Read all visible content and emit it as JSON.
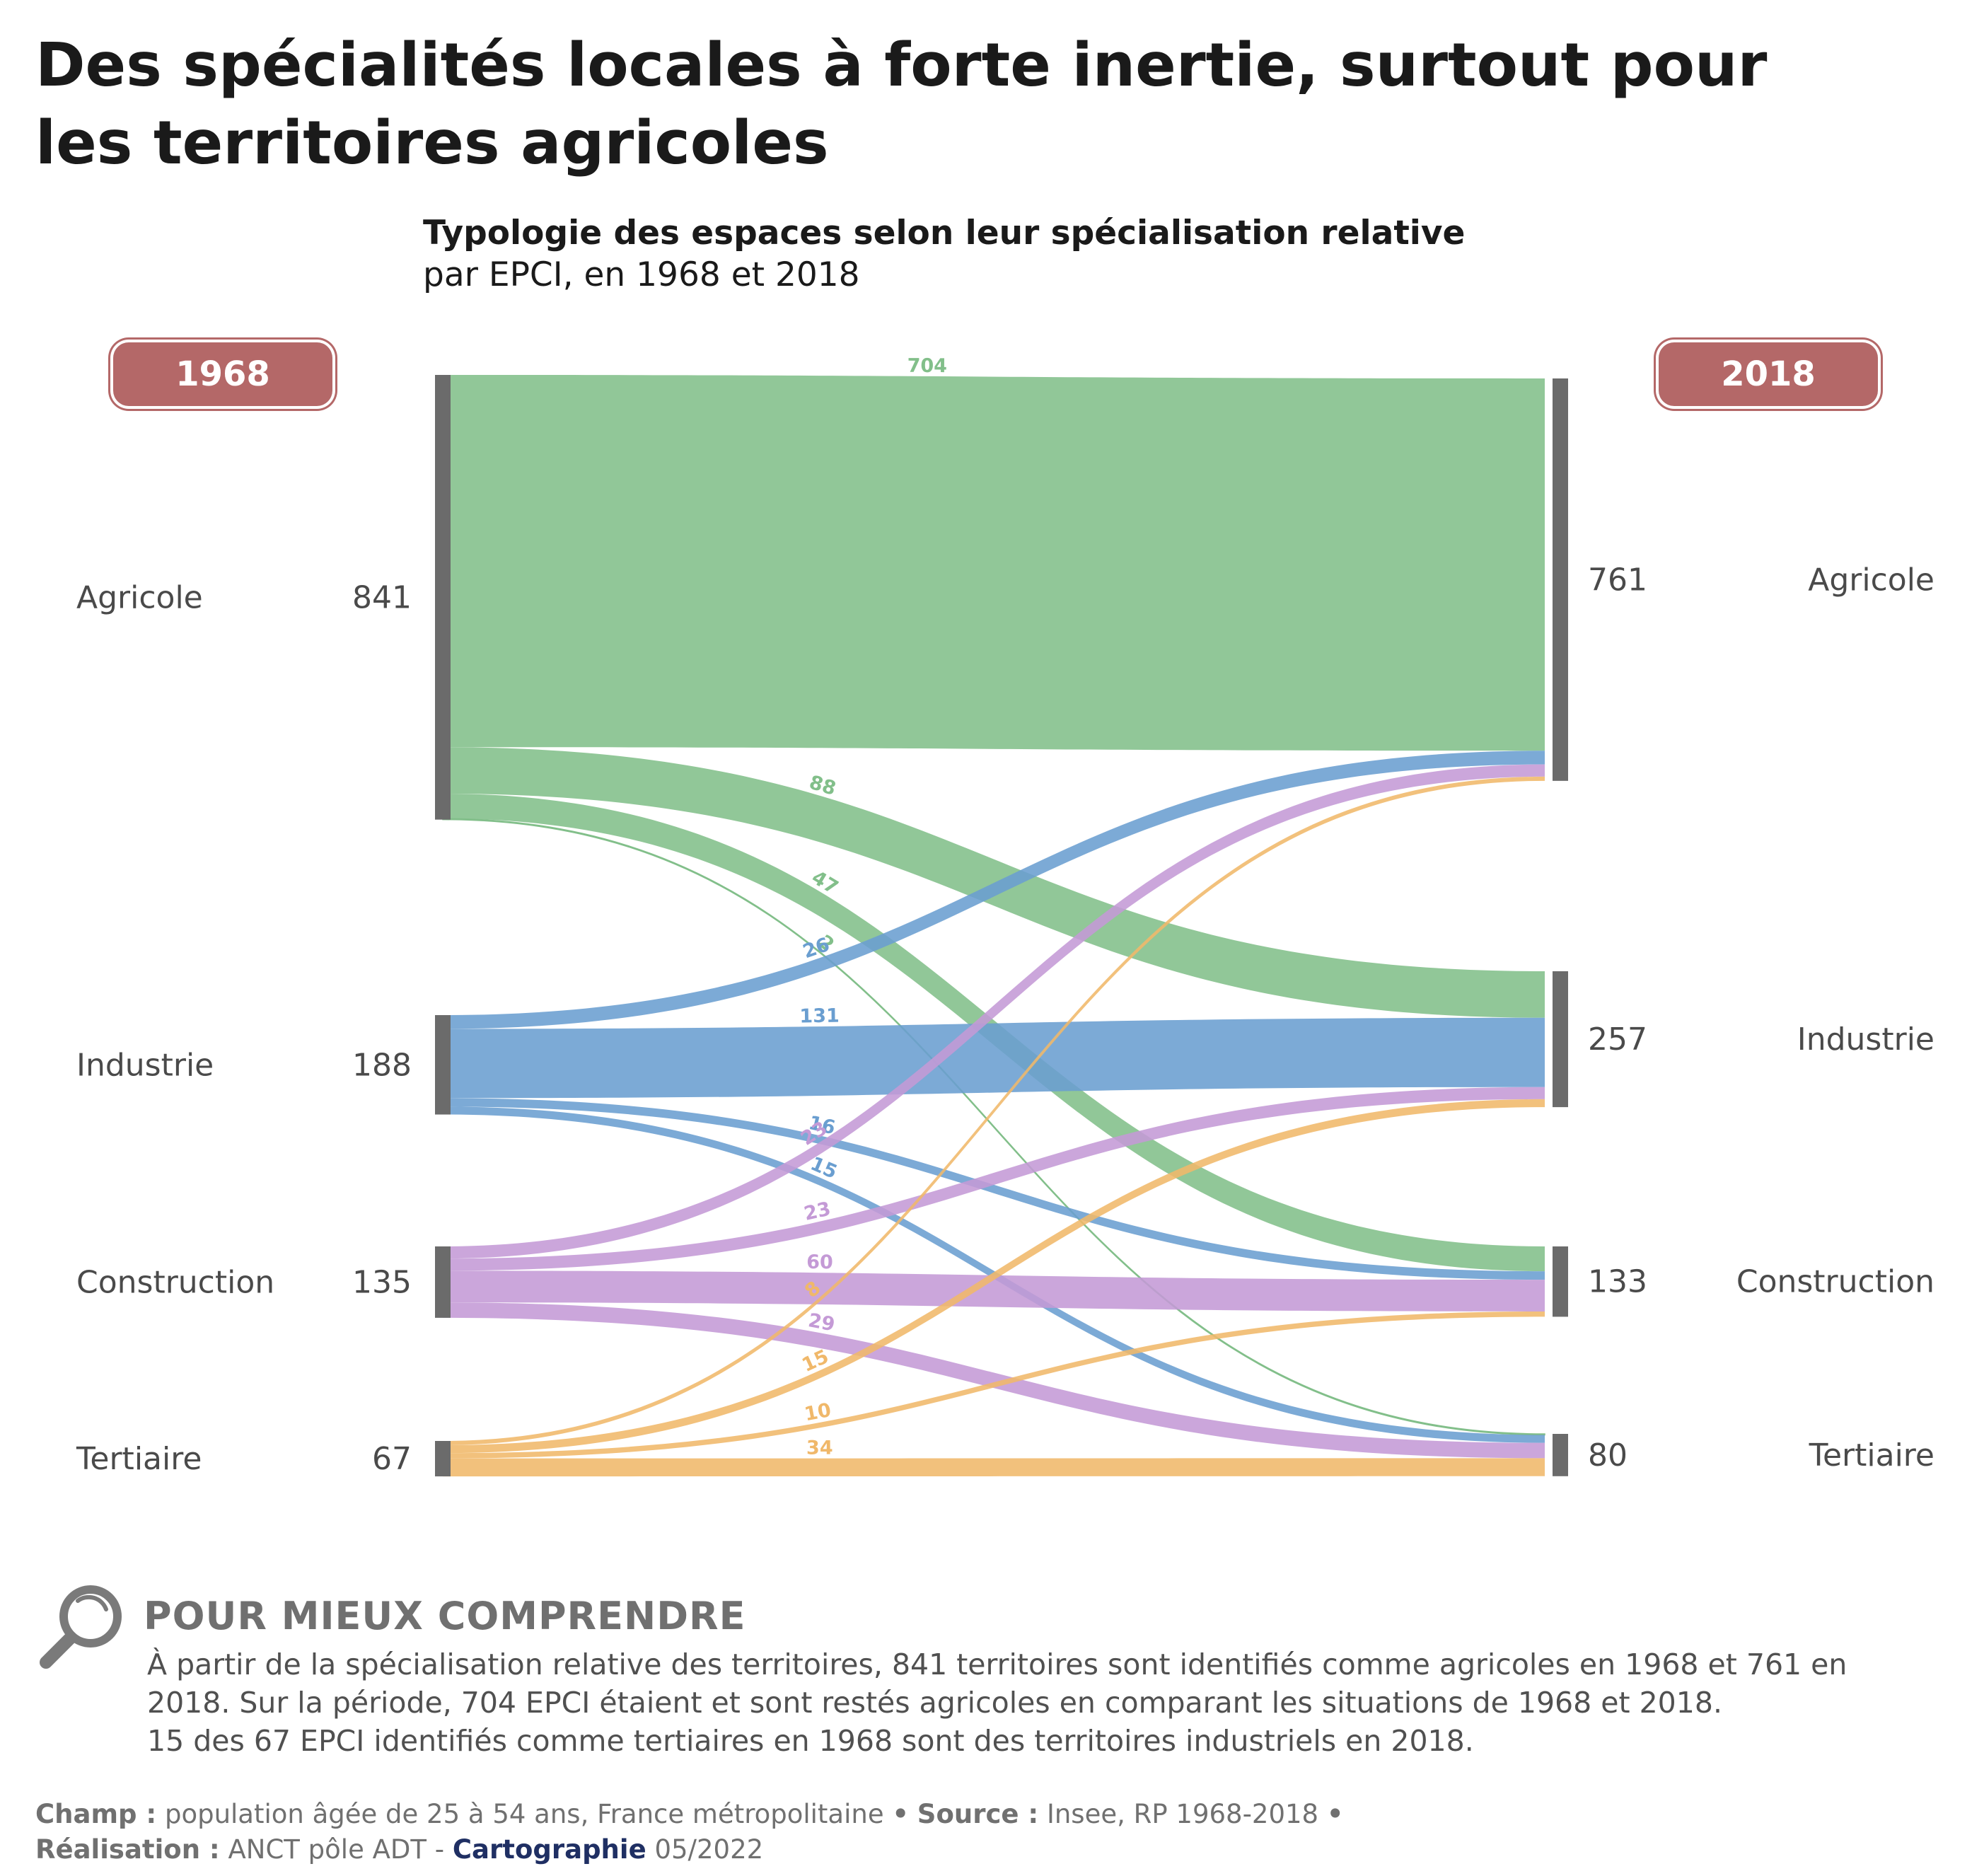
{
  "title": "Des spécialités locales à forte inertie, surtout pour les territoires agricoles",
  "subtitle_bold": "Typologie des espaces selon leur spécialisation relative",
  "subtitle_rest": "par EPCI, en 1968 et 2018",
  "years": {
    "left": "1968",
    "right": "2018"
  },
  "colors": {
    "Agricole": "#82bf8a",
    "Industrie": "#6a9ed0",
    "Construction": "#c49ad6",
    "Tertiaire": "#f0b86a",
    "node": "#6b6b6b",
    "badge": "#b46868"
  },
  "chart_data": {
    "type": "sankey",
    "source_nodes": [
      {
        "name": "Agricole",
        "value": 841
      },
      {
        "name": "Industrie",
        "value": 188
      },
      {
        "name": "Construction",
        "value": 135
      },
      {
        "name": "Tertiaire",
        "value": 67
      }
    ],
    "target_nodes": [
      {
        "name": "Agricole",
        "value": 761
      },
      {
        "name": "Industrie",
        "value": 257
      },
      {
        "name": "Construction",
        "value": 133
      },
      {
        "name": "Tertiaire",
        "value": 80
      }
    ],
    "links": [
      {
        "source": "Agricole",
        "target": "Agricole",
        "value": 704
      },
      {
        "source": "Agricole",
        "target": "Industrie",
        "value": 88
      },
      {
        "source": "Agricole",
        "target": "Construction",
        "value": 47
      },
      {
        "source": "Agricole",
        "target": "Tertiaire",
        "value": 2
      },
      {
        "source": "Industrie",
        "target": "Agricole",
        "value": 26
      },
      {
        "source": "Industrie",
        "target": "Industrie",
        "value": 131
      },
      {
        "source": "Industrie",
        "target": "Construction",
        "value": 16
      },
      {
        "source": "Industrie",
        "target": "Tertiaire",
        "value": 15
      },
      {
        "source": "Construction",
        "target": "Agricole",
        "value": 23
      },
      {
        "source": "Construction",
        "target": "Industrie",
        "value": 23
      },
      {
        "source": "Construction",
        "target": "Construction",
        "value": 60
      },
      {
        "source": "Construction",
        "target": "Tertiaire",
        "value": 29
      },
      {
        "source": "Tertiaire",
        "target": "Agricole",
        "value": 8
      },
      {
        "source": "Tertiaire",
        "target": "Industrie",
        "value": 15
      },
      {
        "source": "Tertiaire",
        "target": "Construction",
        "value": 10
      },
      {
        "source": "Tertiaire",
        "target": "Tertiaire",
        "value": 34
      }
    ]
  },
  "understand": {
    "title": "POUR MIEUX COMPRENDRE",
    "line1": "À partir de la spécialisation relative des territoires, 841 territoires sont identifiés comme agricoles en 1968 et 761 en",
    "line2": "2018. Sur la période, 704 EPCI étaient et sont restés agricoles en comparant les situations de 1968 et 2018.",
    "line3": "15 des 67 EPCI identifiés comme tertiaires en 1968 sont des territoires industriels en 2018."
  },
  "footer": {
    "champ_label": "Champ :",
    "champ_text": "population âgée de 25 à 54 ans, France métropolitaine",
    "sep1": "•",
    "source_label": "Source :",
    "source_text": "Insee, RP 1968-2018",
    "sep2": "•",
    "realisation_label": "Réalisation :",
    "realisation_text": "ANCT pôle ADT -",
    "carto": "Cartographie",
    "date": "05/2022"
  }
}
